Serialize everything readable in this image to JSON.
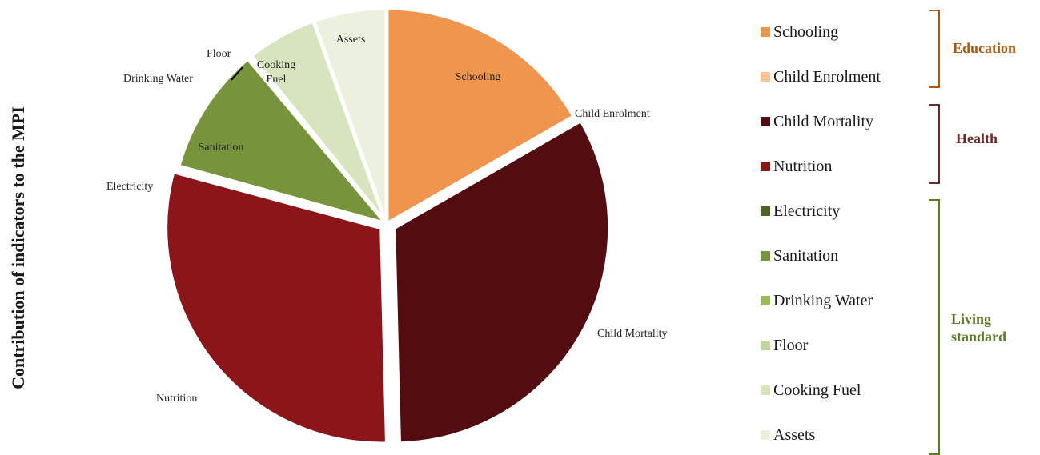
{
  "axis_title": "Contribution of indicators to the MPI",
  "chart_data": {
    "type": "pie",
    "title": "",
    "slices": [
      {
        "label": "Schooling",
        "value": 16.7,
        "color": "#F0954E",
        "label_inside": true
      },
      {
        "label": "Child Enrolment",
        "value": 0.0,
        "color": "#F9C490",
        "label_inside": false
      },
      {
        "label": "Child Mortality",
        "value": 32.9,
        "color": "#530D10",
        "label_inside": false
      },
      {
        "label": "Nutrition",
        "value": 29.6,
        "color": "#8B1519",
        "label_inside": false
      },
      {
        "label": "Electricity",
        "value": 0.1,
        "color": "#4F6228",
        "label_inside": false
      },
      {
        "label": "Sanitation",
        "value": 9.6,
        "color": "#77933C",
        "label_inside": true
      },
      {
        "label": "Drinking Water",
        "value": 0.2,
        "color": "#9BBB59",
        "label_inside": false
      },
      {
        "label": "Floor",
        "value": 0.1,
        "color": "#C3D69B",
        "label_inside": false
      },
      {
        "label": "Cooking Fuel",
        "value": 5.3,
        "color": "#D7E4BD",
        "label_inside": true
      },
      {
        "label": "Assets",
        "value": 5.5,
        "color": "#EBF1DE",
        "label_inside": true
      }
    ]
  },
  "legend": {
    "items": [
      "Schooling",
      "Child Enrolment",
      "Child Mortality",
      "Nutrition",
      "Electricity",
      "Sanitation",
      "Drinking Water",
      "Floor",
      "Cooking Fuel",
      "Assets"
    ],
    "groups": [
      {
        "label": "Education",
        "color": "#A65A12"
      },
      {
        "label": "Health",
        "color": "#6B2A2A"
      },
      {
        "label": "Living standard",
        "color": "#5B7A2B"
      }
    ]
  }
}
